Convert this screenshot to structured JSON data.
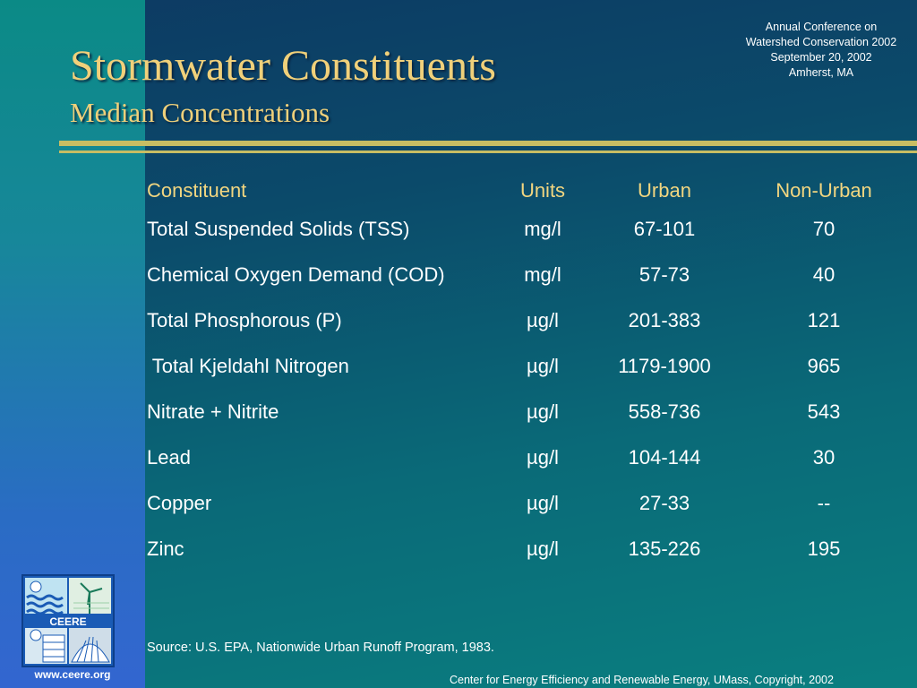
{
  "conference": {
    "line1": "Annual Conference on",
    "line2": "Watershed Conservation 2002",
    "line3": "September 20, 2002",
    "line4": "Amherst, MA"
  },
  "title": "Stormwater Constituents",
  "subtitle": "Median Concentrations",
  "table": {
    "headers": [
      "Constituent",
      "Units",
      "Urban",
      "Non-Urban"
    ],
    "rows": [
      [
        "Total Suspended Solids (TSS)",
        "mg/l",
        "67-101",
        "70"
      ],
      [
        "Chemical Oxygen Demand (COD)",
        "mg/l",
        "57-73",
        "40"
      ],
      [
        "Total Phosphorous (P)",
        "µg/l",
        "201-383",
        "121"
      ],
      [
        " Total Kjeldahl Nitrogen",
        "µg/l",
        "1179-1900",
        "965"
      ],
      [
        "Nitrate + Nitrite",
        "µg/l",
        "558-736",
        "543"
      ],
      [
        "Lead",
        "µg/l",
        "104-144",
        "30"
      ],
      [
        "Copper",
        "µg/l",
        "27-33",
        "--"
      ],
      [
        "Zinc",
        "µg/l",
        "135-226",
        "195"
      ]
    ]
  },
  "logo": {
    "text": "CEERE"
  },
  "website": "www.ceere.org",
  "source": "Source: U.S. EPA, Nationwide Urban Runoff Program, 1983.",
  "footer": "Center for Energy Efficiency and Renewable Energy, UMass, Copyright, 2002",
  "colors": {
    "title": "#f0d07a",
    "header": "#f2d680",
    "rule": "#c7bd63"
  }
}
